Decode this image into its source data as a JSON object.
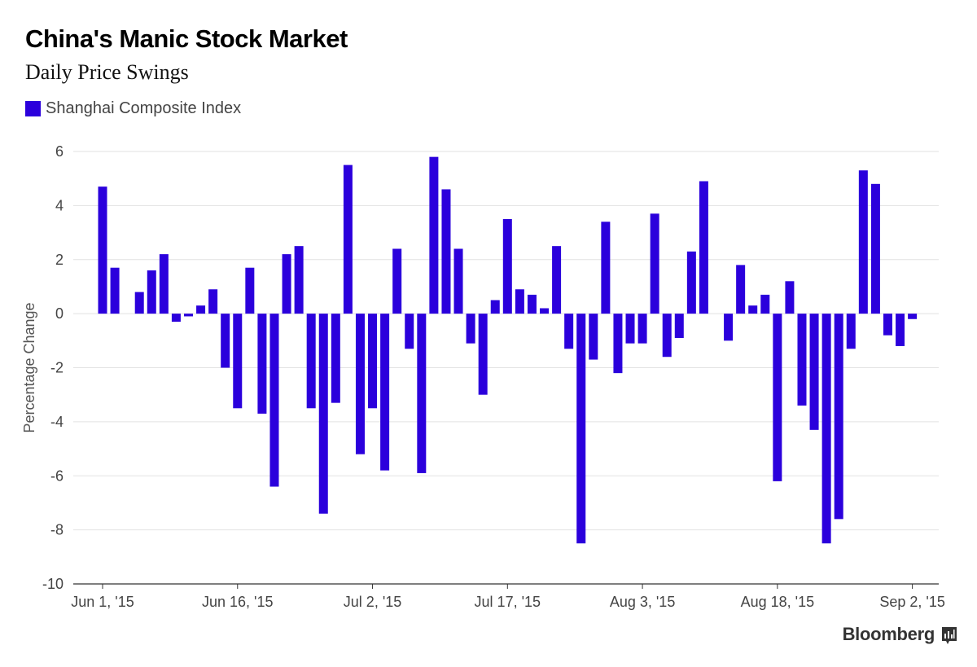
{
  "header": {
    "title": "China's Manic Stock Market",
    "subtitle": "Daily Price Swings"
  },
  "brand": {
    "name": "Bloomberg"
  },
  "colors": {
    "bar": "#2b00dc",
    "grid": "#e2e2e2",
    "axis": "#333333"
  },
  "chart_data": {
    "type": "bar",
    "title": "China's Manic Stock Market",
    "subtitle": "Daily Price Swings",
    "ylabel": "Percentage Change",
    "xlabel": "",
    "ylim": [
      -10,
      6
    ],
    "yticks": [
      6,
      4,
      2,
      0,
      -2,
      -4,
      -6,
      -8,
      -10
    ],
    "legend": {
      "position": "top-left",
      "entries": [
        "Shanghai Composite Index"
      ]
    },
    "grid": true,
    "x_tick_labels": [
      "Jun 1, '15",
      "Jun 16, '15",
      "Jul 2, '15",
      "Jul 17, '15",
      "Aug 3, '15",
      "Aug 18, '15",
      "Sep 2, '15"
    ],
    "x_tick_index": [
      0,
      11,
      22,
      33,
      44,
      55,
      66
    ],
    "series": [
      {
        "name": "Shanghai Composite Index",
        "values": [
          4.7,
          1.7,
          null,
          0.8,
          1.6,
          2.2,
          -0.3,
          -0.1,
          0.3,
          0.9,
          -2.0,
          -3.5,
          1.7,
          -3.7,
          -6.4,
          2.2,
          2.5,
          -3.5,
          -7.4,
          -3.3,
          5.5,
          -5.2,
          -3.5,
          -5.8,
          2.4,
          -1.3,
          -5.9,
          5.8,
          4.6,
          2.4,
          -1.1,
          -3.0,
          0.5,
          3.5,
          0.9,
          0.7,
          0.2,
          2.5,
          -1.3,
          -8.5,
          -1.7,
          3.4,
          -2.2,
          -1.1,
          -1.1,
          3.7,
          -1.6,
          -0.9,
          2.3,
          4.9,
          null,
          -1.0,
          1.8,
          0.3,
          0.7,
          -6.2,
          1.2,
          -3.4,
          -4.3,
          -8.5,
          -7.6,
          -1.3,
          5.3,
          4.8,
          -0.8,
          -1.2,
          -0.2
        ]
      }
    ]
  }
}
